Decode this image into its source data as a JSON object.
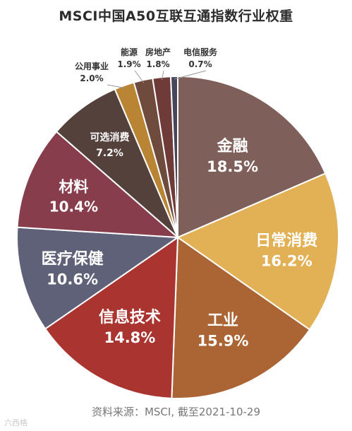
{
  "chart_data": {
    "type": "pie",
    "title": "MSCI中国A50互联互通指数行业权重",
    "slices": [
      {
        "label": "金融",
        "value": 18.5,
        "value_label": "18.5%",
        "color": "#7f5f5a"
      },
      {
        "label": "日常消费",
        "value": 16.2,
        "value_label": "16.2%",
        "color": "#e2b055"
      },
      {
        "label": "工业",
        "value": 15.9,
        "value_label": "15.9%",
        "color": "#ab6434"
      },
      {
        "label": "信息技术",
        "value": 14.8,
        "value_label": "14.8%",
        "color": "#aa3430"
      },
      {
        "label": "医疗保健",
        "value": 10.6,
        "value_label": "10.6%",
        "color": "#5f6178"
      },
      {
        "label": "材料",
        "value": 10.4,
        "value_label": "10.4%",
        "color": "#873d4c"
      },
      {
        "label": "可选消费",
        "value": 7.2,
        "value_label": "7.2%",
        "color": "#54413c"
      },
      {
        "label": "公用事业",
        "value": 2.0,
        "value_label": "2.0%",
        "color": "#b98433"
      },
      {
        "label": "能源",
        "value": 1.9,
        "value_label": "1.9%",
        "color": "#6f4b3e"
      },
      {
        "label": "房地产",
        "value": 1.8,
        "value_label": "1.8%",
        "color": "#6e3b39"
      },
      {
        "label": "电信服务",
        "value": 0.7,
        "value_label": "0.7%",
        "color": "#46465a"
      }
    ]
  },
  "source": "资料来源：MSCI, 截至2021-10-29",
  "watermark": "六西格"
}
